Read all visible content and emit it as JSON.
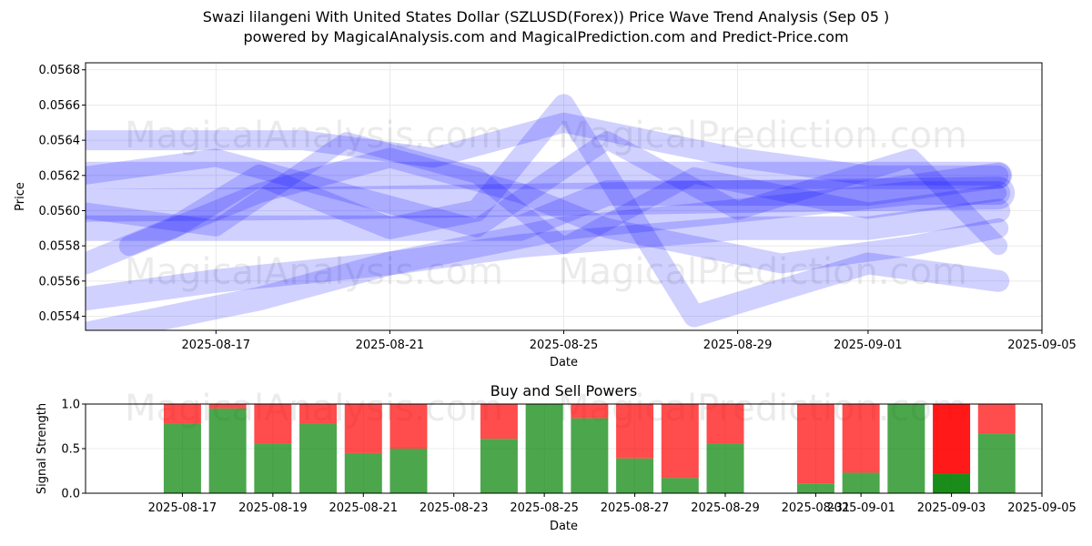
{
  "title": "Swazi lilangeni With United States Dollar (SZLUSD(Forex)) Price Wave Trend Analysis (Sep 05 )",
  "subtitle": "powered by MagicalAnalysis.com and MagicalPrediction.com and Predict-Price.com",
  "watermarks": [
    "MagicalAnalysis.com",
    "MagicalPrediction.com"
  ],
  "chart_data": [
    {
      "type": "line",
      "title": "",
      "xlabel": "Date",
      "ylabel": "Price",
      "xlim": [
        "2025-08-14",
        "2025-09-05"
      ],
      "ylim": [
        0.05532,
        0.05684
      ],
      "x_ticks": [
        "2025-08-17",
        "2025-08-21",
        "2025-08-25",
        "2025-08-29",
        "2025-09-01",
        "2025-09-05"
      ],
      "y_ticks": [
        0.0554,
        0.0556,
        0.0558,
        0.056,
        0.0562,
        0.0564,
        0.0566,
        0.0568
      ],
      "grid": true,
      "color": "#0000ff",
      "series": [
        {
          "x": [
            "2025-08-14",
            "2025-08-19",
            "2025-08-24",
            "2025-08-29",
            "2025-09-04"
          ],
          "y": [
            0.05603,
            0.05604,
            0.05606,
            0.05608,
            0.0561
          ]
        },
        {
          "x": [
            "2025-08-14",
            "2025-08-18",
            "2025-08-21",
            "2025-08-25",
            "2025-08-28",
            "2025-09-01",
            "2025-09-04"
          ],
          "y": [
            0.0562,
            0.0562,
            0.0562,
            0.0562,
            0.0562,
            0.0562,
            0.0562
          ]
        },
        {
          "x": [
            "2025-08-14",
            "2025-08-17",
            "2025-08-20",
            "2025-08-24",
            "2025-08-26",
            "2025-08-29",
            "2025-09-01",
            "2025-09-04"
          ],
          "y": [
            0.0559,
            0.0559,
            0.0559,
            0.0559,
            0.0561,
            0.0561,
            0.0561,
            0.0562
          ]
        },
        {
          "x": [
            "2025-08-14",
            "2025-08-17",
            "2025-08-21",
            "2025-08-24",
            "2025-08-29",
            "2025-09-01",
            "2025-09-04"
          ],
          "y": [
            0.0555,
            0.0556,
            0.0557,
            0.0558,
            0.0559,
            0.0559,
            0.056
          ]
        },
        {
          "x": [
            "2025-08-14",
            "2025-08-17",
            "2025-08-19",
            "2025-08-22",
            "2025-08-25",
            "2025-08-29",
            "2025-09-01",
            "2025-09-04"
          ],
          "y": [
            0.0564,
            0.0564,
            0.0564,
            0.0563,
            0.0565,
            0.0563,
            0.0562,
            0.0562
          ]
        },
        {
          "x": [
            "2025-08-14",
            "2025-08-16",
            "2025-08-18",
            "2025-08-21",
            "2025-08-23",
            "2025-08-25",
            "2025-08-28",
            "2025-09-01",
            "2025-09-04"
          ],
          "y": [
            0.0557,
            0.0559,
            0.0562,
            0.0559,
            0.056,
            0.0566,
            0.0554,
            0.0557,
            0.0556
          ]
        },
        {
          "x": [
            "2025-08-14",
            "2025-08-18",
            "2025-08-21",
            "2025-08-25",
            "2025-08-29",
            "2025-09-02",
            "2025-09-04"
          ],
          "y": [
            0.0553,
            0.0555,
            0.0557,
            0.0559,
            0.056,
            0.0561,
            0.0561
          ]
        },
        {
          "x": [
            "2025-08-14",
            "2025-08-17",
            "2025-08-20",
            "2025-08-23",
            "2025-08-26",
            "2025-08-29",
            "2025-09-02",
            "2025-09-04"
          ],
          "y": [
            0.0562,
            0.0563,
            0.0561,
            0.0559,
            0.0564,
            0.056,
            0.0563,
            0.0558
          ]
        },
        {
          "x": [
            "2025-08-15",
            "2025-08-18",
            "2025-08-21",
            "2025-08-24",
            "2025-08-26",
            "2025-08-30",
            "2025-09-02",
            "2025-09-04"
          ],
          "y": [
            0.0558,
            0.0561,
            0.0563,
            0.0561,
            0.0559,
            0.0557,
            0.0558,
            0.0559
          ]
        },
        {
          "x": [
            "2025-08-14",
            "2025-08-17",
            "2025-08-20",
            "2025-08-23",
            "2025-08-25",
            "2025-08-28",
            "2025-09-01",
            "2025-09-04"
          ],
          "y": [
            0.056,
            0.0559,
            0.0564,
            0.0562,
            0.0558,
            0.0562,
            0.056,
            0.0561
          ]
        }
      ]
    },
    {
      "type": "bar",
      "title": "Buy and Sell Powers",
      "xlabel": "Date",
      "ylabel": "Signal Strength",
      "ylim": [
        0,
        1
      ],
      "y_ticks": [
        "0.0",
        "0.5",
        "1.0"
      ],
      "x_ticks": [
        "2025-08-17",
        "2025-08-19",
        "2025-08-21",
        "2025-08-23",
        "2025-08-25",
        "2025-08-27",
        "2025-08-29",
        "2025-08-31",
        "2025-09-01",
        "2025-09-03",
        "2025-09-05"
      ],
      "grid": true,
      "buy_color": "#008000",
      "sell_color": "#ff0000",
      "bars": [
        {
          "date": "2025-08-17",
          "buy": 0.78
        },
        {
          "date": "2025-08-18",
          "buy": 0.95
        },
        {
          "date": "2025-08-19",
          "buy": 0.56
        },
        {
          "date": "2025-08-20",
          "buy": 0.78
        },
        {
          "date": "2025-08-21",
          "buy": 0.45
        },
        {
          "date": "2025-08-22",
          "buy": 0.5
        },
        {
          "date": "2025-08-24",
          "buy": 0.61
        },
        {
          "date": "2025-08-25",
          "buy": 1.0
        },
        {
          "date": "2025-08-26",
          "buy": 0.84
        },
        {
          "date": "2025-08-27",
          "buy": 0.39
        },
        {
          "date": "2025-08-28",
          "buy": 0.17
        },
        {
          "date": "2025-08-29",
          "buy": 0.56
        },
        {
          "date": "2025-08-31",
          "buy": 0.11
        },
        {
          "date": "2025-09-01",
          "buy": 0.23
        },
        {
          "date": "2025-09-02",
          "buy": 1.0
        },
        {
          "date": "2025-09-03",
          "buy": 0.22,
          "highlight": true
        },
        {
          "date": "2025-09-04",
          "buy": 0.67
        }
      ]
    }
  ]
}
